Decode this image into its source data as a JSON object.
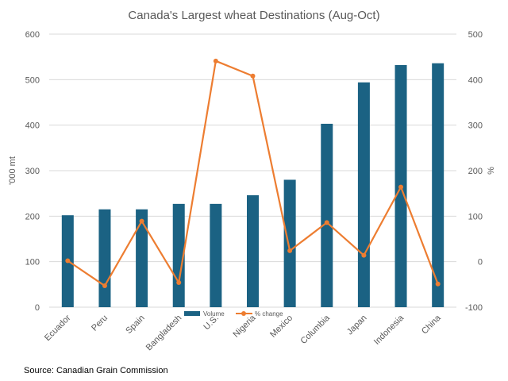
{
  "chart_data": {
    "type": "bar",
    "title": "Canada's Largest wheat Destinations (Aug-Oct)",
    "source": "Source: Canadian Grain Commission",
    "categories": [
      "Ecuador",
      "Peru",
      "Spain",
      "Bangladesh",
      "U.S.",
      "Nigeria",
      "Mexico",
      "Columbia",
      "Japan",
      "Indonesia",
      "China"
    ],
    "series": [
      {
        "name": "Volume",
        "type": "bar",
        "axis": "left",
        "color": "#1b6283",
        "values": [
          202,
          215,
          215,
          227,
          227,
          246,
          280,
          403,
          494,
          532,
          536
        ]
      },
      {
        "name": "% change",
        "type": "line",
        "axis": "right",
        "color": "#ed7d31",
        "values": [
          2,
          -53,
          89,
          -46,
          441,
          408,
          24,
          86,
          14,
          164,
          -49
        ]
      }
    ],
    "ylabel": "'000 mt",
    "y2label": "%",
    "ylim": [
      0,
      600
    ],
    "y2lim": [
      -100,
      500
    ],
    "yticks": [
      0,
      100,
      200,
      300,
      400,
      500,
      600
    ],
    "y2ticks": [
      -100,
      0,
      100,
      200,
      300,
      400,
      500
    ],
    "grid": true,
    "legend_position": "bottom-center"
  }
}
